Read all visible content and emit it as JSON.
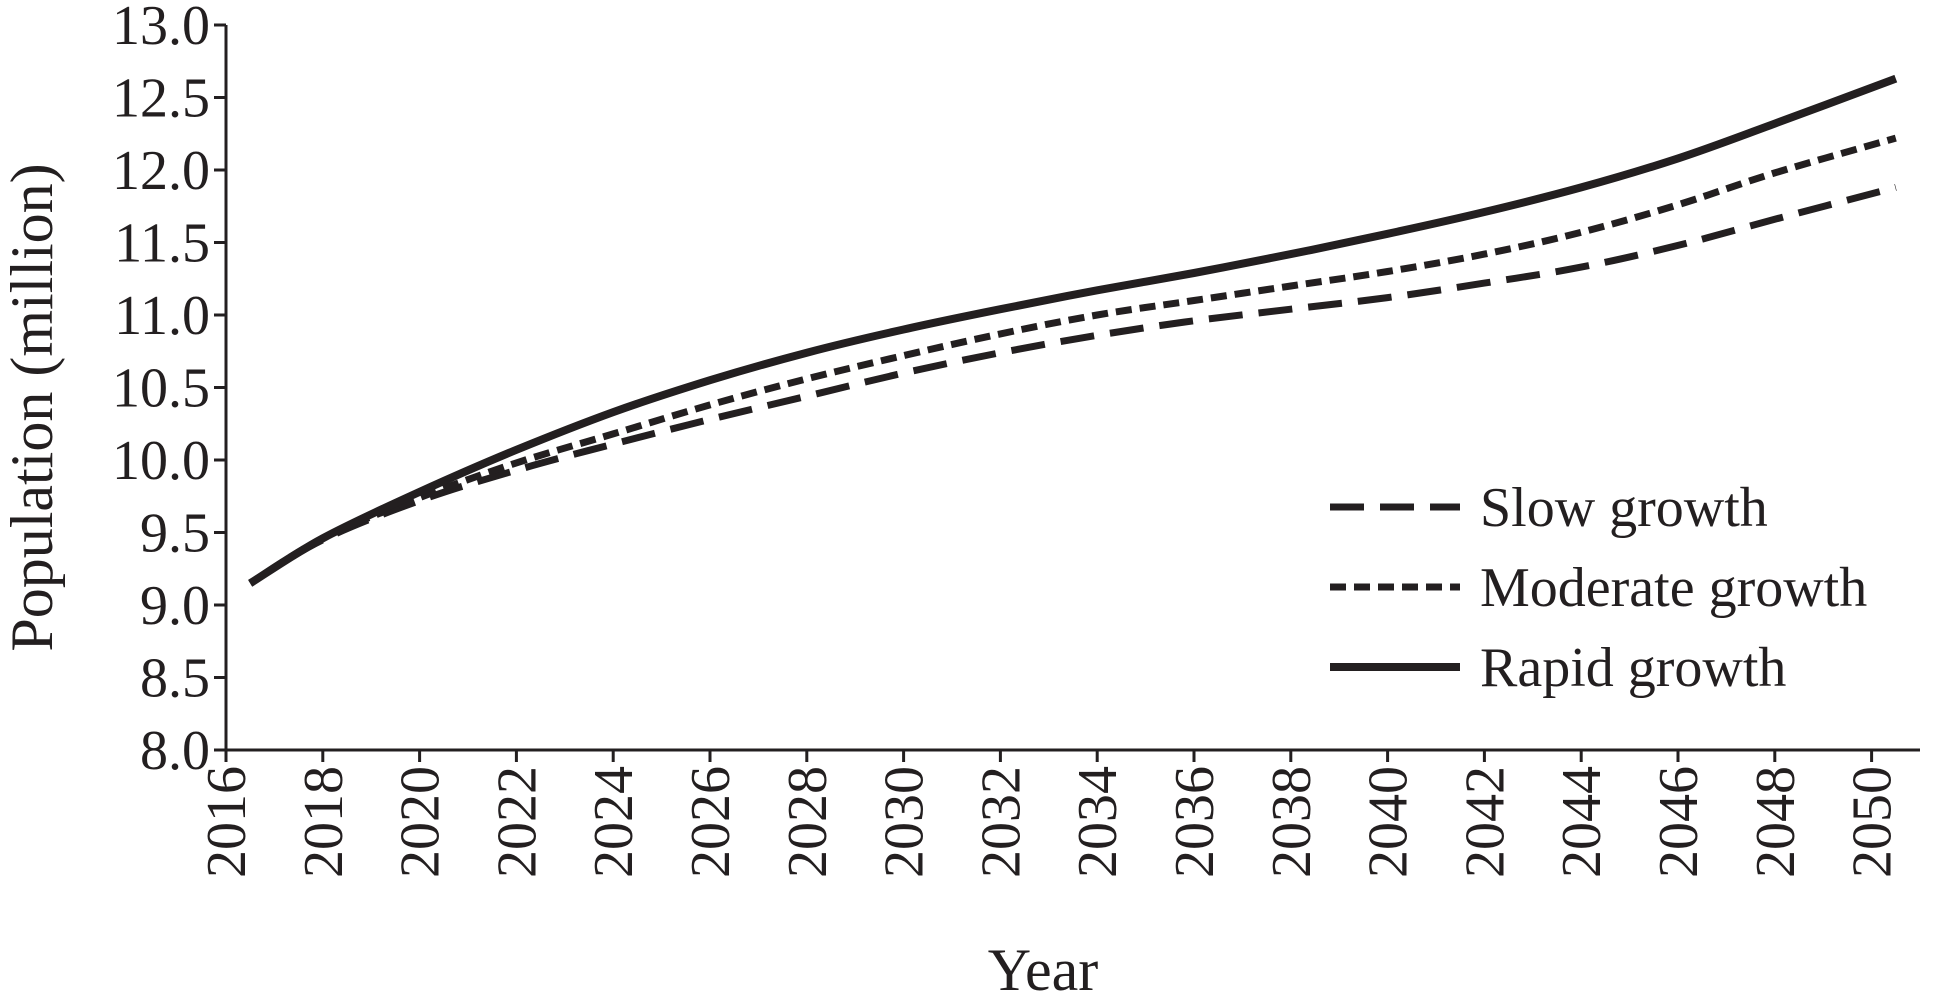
{
  "chart_data": {
    "type": "line",
    "title": "",
    "xlabel": "Year",
    "ylabel": "Population (million)",
    "xlim": [
      2016,
      2051
    ],
    "ylim": [
      8.0,
      13.0
    ],
    "x_ticks": [
      2016,
      2018,
      2020,
      2022,
      2024,
      2026,
      2028,
      2030,
      2032,
      2034,
      2036,
      2038,
      2040,
      2042,
      2044,
      2046,
      2048,
      2050
    ],
    "x_tick_labels": [
      "2016",
      "2018",
      "2020",
      "2022",
      "2024",
      "2026",
      "2028",
      "2030",
      "2032",
      "2034",
      "2036",
      "2038",
      "2040",
      "2042",
      "2044",
      "2046",
      "2048",
      "2050"
    ],
    "y_ticks": [
      8.0,
      8.5,
      9.0,
      9.5,
      10.0,
      10.5,
      11.0,
      11.5,
      12.0,
      12.5,
      13.0
    ],
    "y_tick_labels": [
      "8.0",
      "8.5",
      "9.0",
      "9.5",
      "10.0",
      "10.5",
      "11.0",
      "11.5",
      "12.0",
      "12.5",
      "13.0"
    ],
    "grid": false,
    "legend_position": "right, inside plot",
    "x": [
      2016.5,
      2018,
      2020,
      2022,
      2024,
      2026,
      2028,
      2030,
      2032,
      2034,
      2036,
      2038,
      2040,
      2042,
      2044,
      2046,
      2048,
      2050.5
    ],
    "series": [
      {
        "name": "Slow growth",
        "style": "long-dash",
        "values": [
          9.15,
          9.45,
          9.72,
          9.93,
          10.11,
          10.28,
          10.44,
          10.6,
          10.74,
          10.86,
          10.96,
          11.04,
          11.12,
          11.22,
          11.33,
          11.48,
          11.66,
          11.88
        ]
      },
      {
        "name": "Moderate growth",
        "style": "short-dash",
        "values": [
          9.15,
          9.46,
          9.74,
          9.98,
          10.18,
          10.38,
          10.56,
          10.72,
          10.87,
          11.0,
          11.1,
          11.2,
          11.3,
          11.42,
          11.57,
          11.76,
          11.98,
          12.22
        ]
      },
      {
        "name": "Rapid growth",
        "style": "solid",
        "values": [
          9.15,
          9.46,
          9.78,
          10.07,
          10.33,
          10.55,
          10.74,
          10.9,
          11.04,
          11.17,
          11.29,
          11.42,
          11.56,
          11.71,
          11.88,
          12.08,
          12.32,
          12.63
        ]
      }
    ]
  }
}
